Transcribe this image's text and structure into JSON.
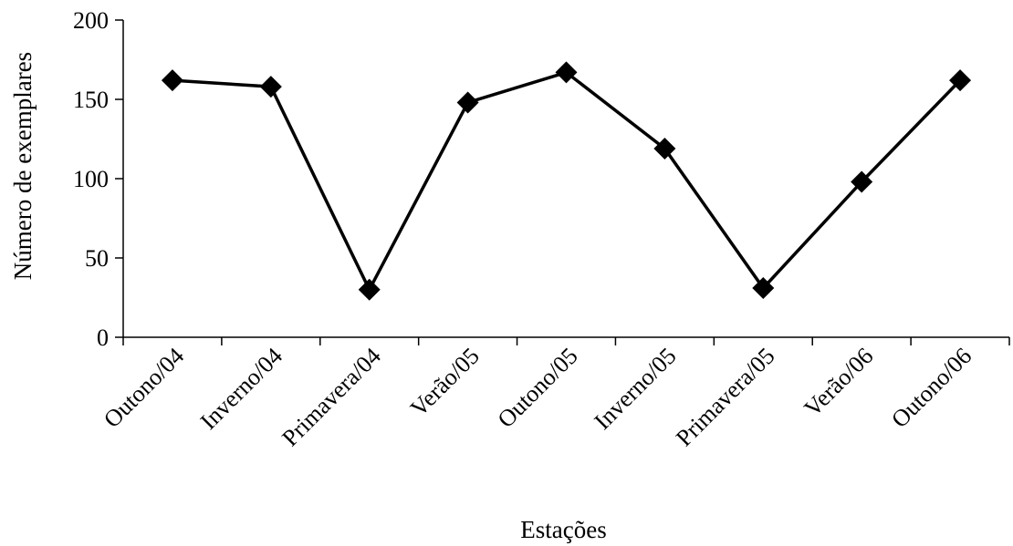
{
  "chart_data": {
    "type": "line",
    "title": "",
    "xlabel": "Estações",
    "ylabel": "Número de exemplares",
    "categories": [
      "Outono/04",
      "Inverno/04",
      "Primavera/04",
      "Verão/05",
      "Outono/05",
      "Inverno/05",
      "Primavera/05",
      "Verão/06",
      "Outono/06"
    ],
    "series": [
      {
        "values": [
          162,
          158,
          30,
          148,
          167,
          119,
          31,
          98,
          162
        ]
      }
    ],
    "ylim": [
      0,
      200
    ],
    "yticks": [
      0,
      50,
      100,
      150,
      200
    ],
    "grid": false,
    "marker": "diamond",
    "line_color": "#000000",
    "marker_color": "#000000"
  }
}
